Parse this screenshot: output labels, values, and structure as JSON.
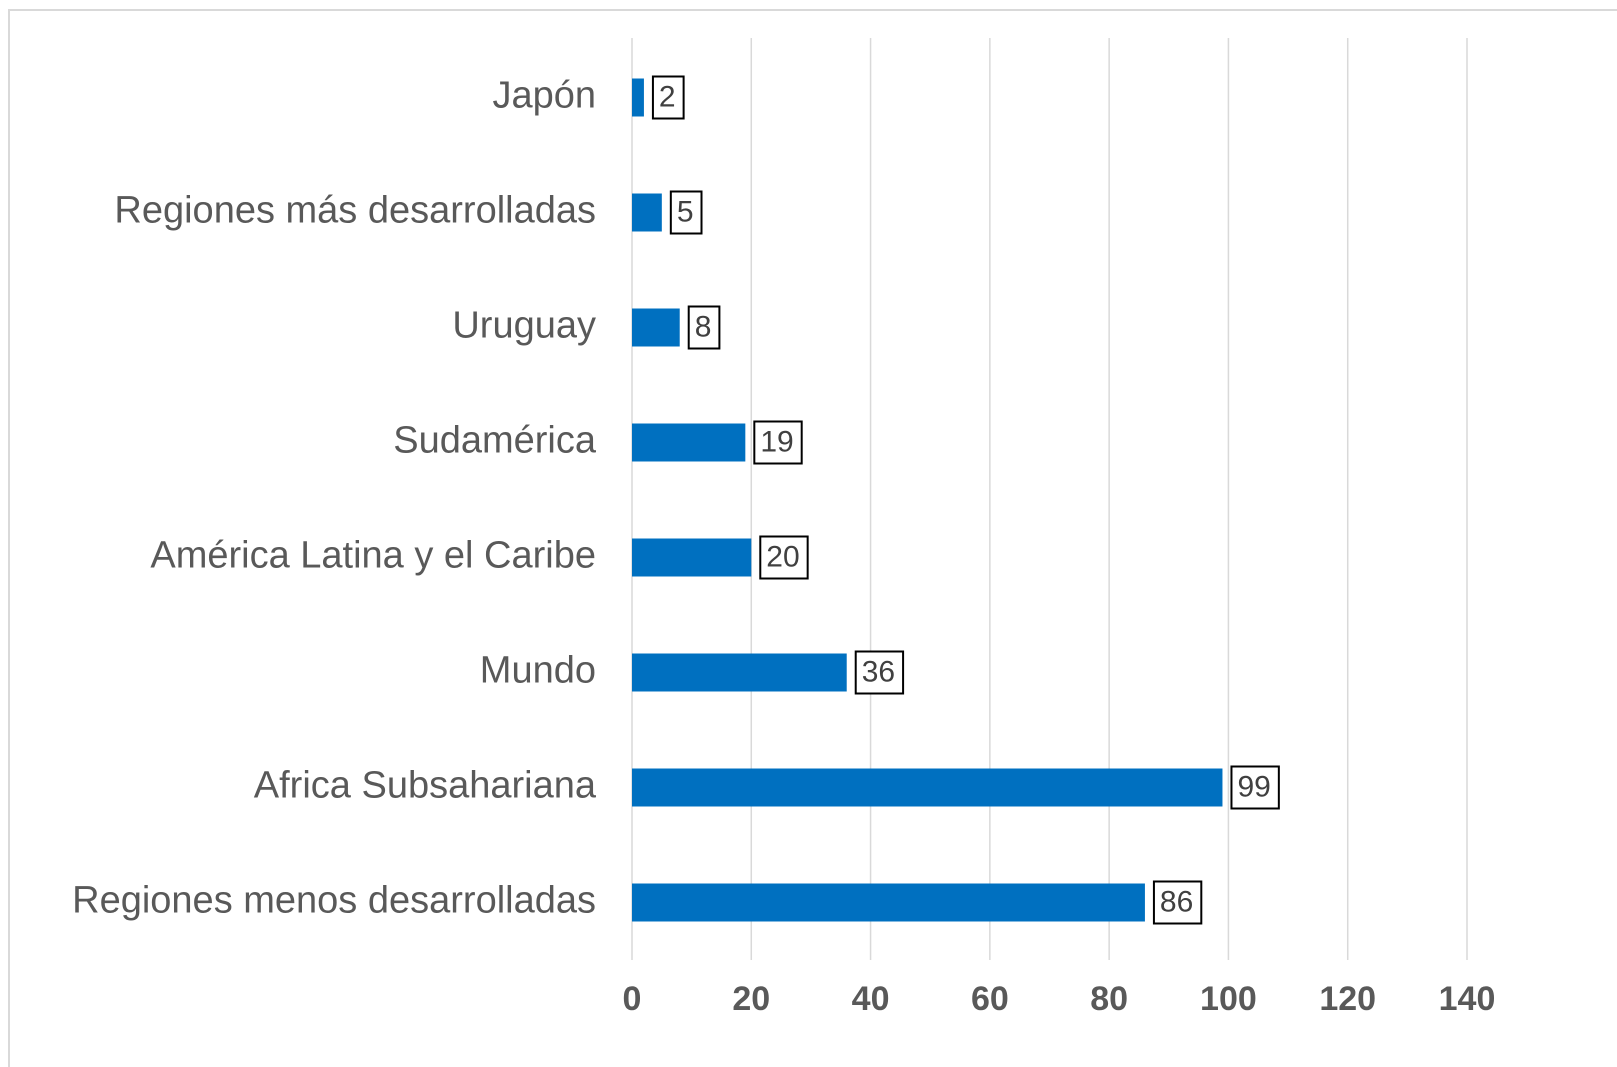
{
  "chart_data": {
    "type": "bar",
    "orientation": "horizontal",
    "categories": [
      "Japón",
      "Regiones más desarrolladas",
      "Uruguay",
      "Sudamérica",
      "América Latina y el Caribe",
      "Mundo",
      "Africa Subsahariana",
      "Regiones menos desarrolladas"
    ],
    "values": [
      2,
      5,
      8,
      19,
      20,
      36,
      99,
      86
    ],
    "color": "#0070c0",
    "xlim": [
      0,
      140
    ],
    "xticks": [
      0,
      20,
      40,
      60,
      80,
      100,
      120,
      140
    ],
    "grid": true,
    "data_labels": true
  }
}
